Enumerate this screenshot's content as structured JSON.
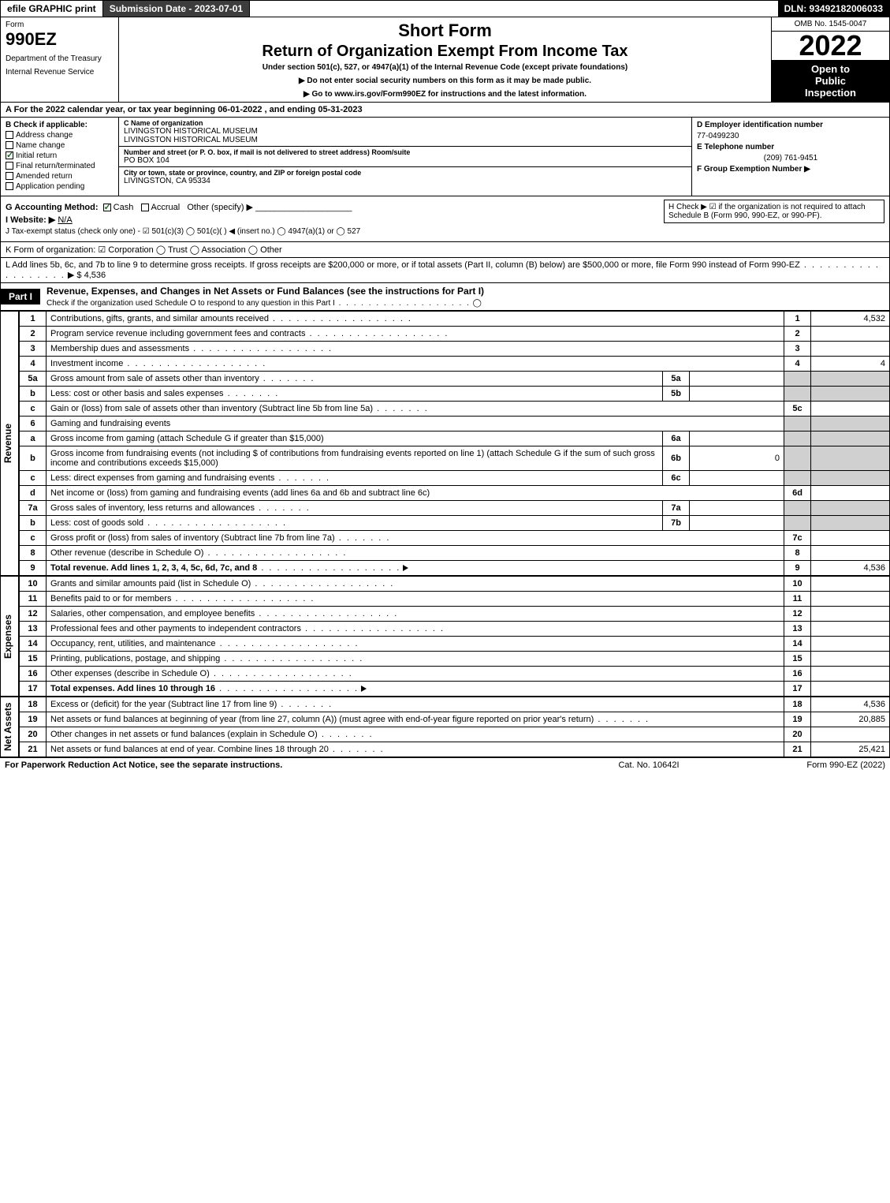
{
  "topbar": {
    "efile": "efile GRAPHIC print",
    "submission": "Submission Date - 2023-07-01",
    "dln": "DLN: 93492182006033"
  },
  "header": {
    "form_label": "Form",
    "form_number": "990EZ",
    "dept1": "Department of the Treasury",
    "dept2": "Internal Revenue Service",
    "short": "Short Form",
    "title": "Return of Organization Exempt From Income Tax",
    "subtitle": "Under section 501(c), 527, or 4947(a)(1) of the Internal Revenue Code (except private foundations)",
    "note1": "▶ Do not enter social security numbers on this form as it may be made public.",
    "note2": "▶ Go to www.irs.gov/Form990EZ for instructions and the latest information.",
    "omb": "OMB No. 1545-0047",
    "year": "2022",
    "inspect1": "Open to",
    "inspect2": "Public",
    "inspect3": "Inspection"
  },
  "rowA": "A  For the 2022 calendar year, or tax year beginning 06-01-2022 , and ending 05-31-2023",
  "colB": {
    "hd": "B  Check if applicable:",
    "opts": [
      "Address change",
      "Name change",
      "Initial return",
      "Final return/terminated",
      "Amended return",
      "Application pending"
    ],
    "checked": [
      false,
      false,
      true,
      false,
      false,
      false
    ]
  },
  "colC": {
    "name_lbl": "C Name of organization",
    "name1": "LIVINGSTON HISTORICAL MUSEUM",
    "name2": "LIVINGSTON HISTORICAL MUSEUM",
    "addr_lbl": "Number and street (or P. O. box, if mail is not delivered to street address)         Room/suite",
    "addr": "PO BOX 104",
    "city_lbl": "City or town, state or province, country, and ZIP or foreign postal code",
    "city": "LIVINGSTON, CA  95334"
  },
  "colD": {
    "ein_lbl": "D Employer identification number",
    "ein": "77-0499230",
    "tel_lbl": "E Telephone number",
    "tel": "(209) 761-9451",
    "grp_lbl": "F Group Exemption Number  ▶"
  },
  "ghij": {
    "g": "G Accounting Method:",
    "g_cash": "Cash",
    "g_accr": "Accrual",
    "g_other": "Other (specify) ▶",
    "h": "H  Check ▶ ☑ if the organization is not required to attach Schedule B (Form 990, 990-EZ, or 990-PF).",
    "i": "I Website: ▶",
    "i_val": "N/A",
    "j": "J Tax-exempt status (check only one) - ☑ 501(c)(3)  ◯ 501(c)(  ) ◀ (insert no.)  ◯ 4947(a)(1) or  ◯ 527"
  },
  "rowK": "K Form of organization:  ☑ Corporation  ◯ Trust  ◯ Association  ◯ Other",
  "rowL": {
    "text": "L Add lines 5b, 6c, and 7b to line 9 to determine gross receipts. If gross receipts are $200,000 or more, or if total assets (Part II, column (B) below) are $500,000 or more, file Form 990 instead of Form 990-EZ",
    "amt": "▶ $ 4,536"
  },
  "part1": {
    "tag": "Part I",
    "title": "Revenue, Expenses, and Changes in Net Assets or Fund Balances (see the instructions for Part I)",
    "check": "Check if the organization used Schedule O to respond to any question in this Part I",
    "check_val": "◯"
  },
  "sections": {
    "revenue": "Revenue",
    "expenses": "Expenses",
    "netassets": "Net Assets"
  },
  "lines": {
    "l1": {
      "n": "1",
      "d": "Contributions, gifts, grants, and similar amounts received",
      "num": "1",
      "v": "4,532"
    },
    "l2": {
      "n": "2",
      "d": "Program service revenue including government fees and contracts",
      "num": "2",
      "v": ""
    },
    "l3": {
      "n": "3",
      "d": "Membership dues and assessments",
      "num": "3",
      "v": ""
    },
    "l4": {
      "n": "4",
      "d": "Investment income",
      "num": "4",
      "v": "4"
    },
    "l5a": {
      "n": "5a",
      "d": "Gross amount from sale of assets other than inventory",
      "sn": "5a",
      "sv": ""
    },
    "l5b": {
      "n": "b",
      "d": "Less: cost or other basis and sales expenses",
      "sn": "5b",
      "sv": ""
    },
    "l5c": {
      "n": "c",
      "d": "Gain or (loss) from sale of assets other than inventory (Subtract line 5b from line 5a)",
      "num": "5c",
      "v": ""
    },
    "l6": {
      "n": "6",
      "d": "Gaming and fundraising events"
    },
    "l6a": {
      "n": "a",
      "d": "Gross income from gaming (attach Schedule G if greater than $15,000)",
      "sn": "6a",
      "sv": ""
    },
    "l6b": {
      "n": "b",
      "d": "Gross income from fundraising events (not including $                   of contributions from fundraising events reported on line 1) (attach Schedule G if the sum of such gross income and contributions exceeds $15,000)",
      "sn": "6b",
      "sv": "0"
    },
    "l6c": {
      "n": "c",
      "d": "Less: direct expenses from gaming and fundraising events",
      "sn": "6c",
      "sv": ""
    },
    "l6d": {
      "n": "d",
      "d": "Net income or (loss) from gaming and fundraising events (add lines 6a and 6b and subtract line 6c)",
      "num": "6d",
      "v": ""
    },
    "l7a": {
      "n": "7a",
      "d": "Gross sales of inventory, less returns and allowances",
      "sn": "7a",
      "sv": ""
    },
    "l7b": {
      "n": "b",
      "d": "Less: cost of goods sold",
      "sn": "7b",
      "sv": ""
    },
    "l7c": {
      "n": "c",
      "d": "Gross profit or (loss) from sales of inventory (Subtract line 7b from line 7a)",
      "num": "7c",
      "v": ""
    },
    "l8": {
      "n": "8",
      "d": "Other revenue (describe in Schedule O)",
      "num": "8",
      "v": ""
    },
    "l9": {
      "n": "9",
      "d": "Total revenue. Add lines 1, 2, 3, 4, 5c, 6d, 7c, and 8",
      "num": "9",
      "v": "4,536"
    },
    "l10": {
      "n": "10",
      "d": "Grants and similar amounts paid (list in Schedule O)",
      "num": "10",
      "v": ""
    },
    "l11": {
      "n": "11",
      "d": "Benefits paid to or for members",
      "num": "11",
      "v": ""
    },
    "l12": {
      "n": "12",
      "d": "Salaries, other compensation, and employee benefits",
      "num": "12",
      "v": ""
    },
    "l13": {
      "n": "13",
      "d": "Professional fees and other payments to independent contractors",
      "num": "13",
      "v": ""
    },
    "l14": {
      "n": "14",
      "d": "Occupancy, rent, utilities, and maintenance",
      "num": "14",
      "v": ""
    },
    "l15": {
      "n": "15",
      "d": "Printing, publications, postage, and shipping",
      "num": "15",
      "v": ""
    },
    "l16": {
      "n": "16",
      "d": "Other expenses (describe in Schedule O)",
      "num": "16",
      "v": ""
    },
    "l17": {
      "n": "17",
      "d": "Total expenses. Add lines 10 through 16",
      "num": "17",
      "v": ""
    },
    "l18": {
      "n": "18",
      "d": "Excess or (deficit) for the year (Subtract line 17 from line 9)",
      "num": "18",
      "v": "4,536"
    },
    "l19": {
      "n": "19",
      "d": "Net assets or fund balances at beginning of year (from line 27, column (A)) (must agree with end-of-year figure reported on prior year's return)",
      "num": "19",
      "v": "20,885"
    },
    "l20": {
      "n": "20",
      "d": "Other changes in net assets or fund balances (explain in Schedule O)",
      "num": "20",
      "v": ""
    },
    "l21": {
      "n": "21",
      "d": "Net assets or fund balances at end of year. Combine lines 18 through 20",
      "num": "21",
      "v": "25,421"
    }
  },
  "footer": {
    "l": "For Paperwork Reduction Act Notice, see the separate instructions.",
    "c": "Cat. No. 10642I",
    "r": "Form 990-EZ (2022)"
  },
  "colors": {
    "dark_bg": "#3d3d3d",
    "black": "#000000",
    "shade": "#d0d0d0",
    "link": "#0000cc",
    "check_green": "#1a6b1a"
  }
}
